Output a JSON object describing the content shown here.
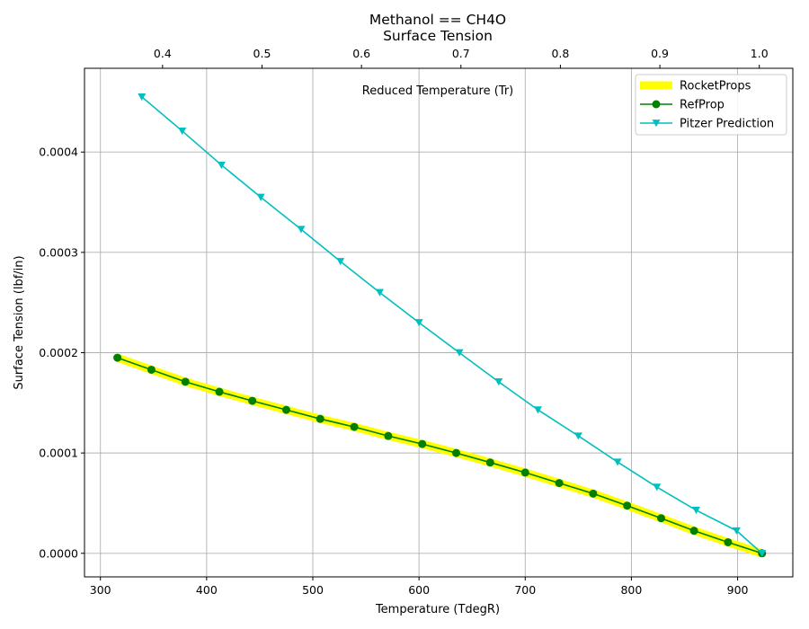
{
  "chart_data": {
    "type": "line",
    "title": "Methanol == CH4O",
    "subtitle": "Surface Tension",
    "xlabel": "Temperature (TdegR)",
    "ylabel": "Surface Tension (lbf/in)",
    "x2label": "Reduced Temperature (Tr)",
    "xlim": [
      285,
      952
    ],
    "ylim": [
      -2.35e-05,
      0.0004835
    ],
    "x2lim": [
      0.3215,
      1.0337
    ],
    "xticks": [
      300,
      400,
      500,
      600,
      700,
      800,
      900
    ],
    "yticks": [
      0.0,
      0.0001,
      0.0002,
      0.0003,
      0.0004
    ],
    "ytick_labels": [
      "0.0000",
      "0.0001",
      "0.0002",
      "0.0003",
      "0.0004"
    ],
    "x2ticks": [
      0.4,
      0.5,
      0.6,
      0.7,
      0.8,
      0.9,
      1.0
    ],
    "x2tick_labels": [
      "0.4",
      "0.5",
      "0.6",
      "0.7",
      "0.8",
      "0.9",
      "1.0"
    ],
    "grid": true,
    "legend_position": "top-right",
    "series": [
      {
        "name": "RocketProps",
        "color": "#ffff00",
        "style": "thick-line",
        "x": [
          316,
          348,
          380,
          412,
          443,
          475,
          507,
          539,
          571,
          603,
          635,
          667,
          700,
          732,
          764,
          796,
          828,
          859,
          891,
          923
        ],
        "y": [
          0.000195,
          0.000183,
          0.000171,
          0.000161,
          0.000152,
          0.000143,
          0.000134,
          0.000126,
          0.000117,
          0.000109,
          0.0001,
          9.05e-05,
          8.05e-05,
          7e-05,
          5.95e-05,
          4.75e-05,
          3.5e-05,
          2.25e-05,
          1.1e-05,
          0.0
        ]
      },
      {
        "name": "RefProp",
        "color": "#008000",
        "style": "line-circle",
        "x": [
          316,
          348,
          380,
          412,
          443,
          475,
          507,
          539,
          571,
          603,
          635,
          667,
          700,
          732,
          764,
          796,
          828,
          859,
          891,
          923
        ],
        "y": [
          0.000195,
          0.000183,
          0.000171,
          0.000161,
          0.000152,
          0.000143,
          0.000134,
          0.000126,
          0.000117,
          0.000109,
          0.0001,
          9.05e-05,
          8.05e-05,
          7e-05,
          5.95e-05,
          4.75e-05,
          3.5e-05,
          2.25e-05,
          1.1e-05,
          0.0
        ]
      },
      {
        "name": "Pitzer Prediction",
        "color": "#00bfbf",
        "style": "line-triangle",
        "x": [
          339,
          377,
          414,
          451,
          489,
          526,
          563,
          600,
          638,
          675,
          712,
          750,
          787,
          824,
          861,
          899,
          923
        ],
        "y": [
          0.000455,
          0.000421,
          0.000387,
          0.000355,
          0.000323,
          0.000291,
          0.00026,
          0.00023,
          0.0002,
          0.000171,
          0.000143,
          0.000117,
          9.1e-05,
          6.6e-05,
          4.3e-05,
          2.25e-05,
          0.0
        ]
      }
    ]
  }
}
